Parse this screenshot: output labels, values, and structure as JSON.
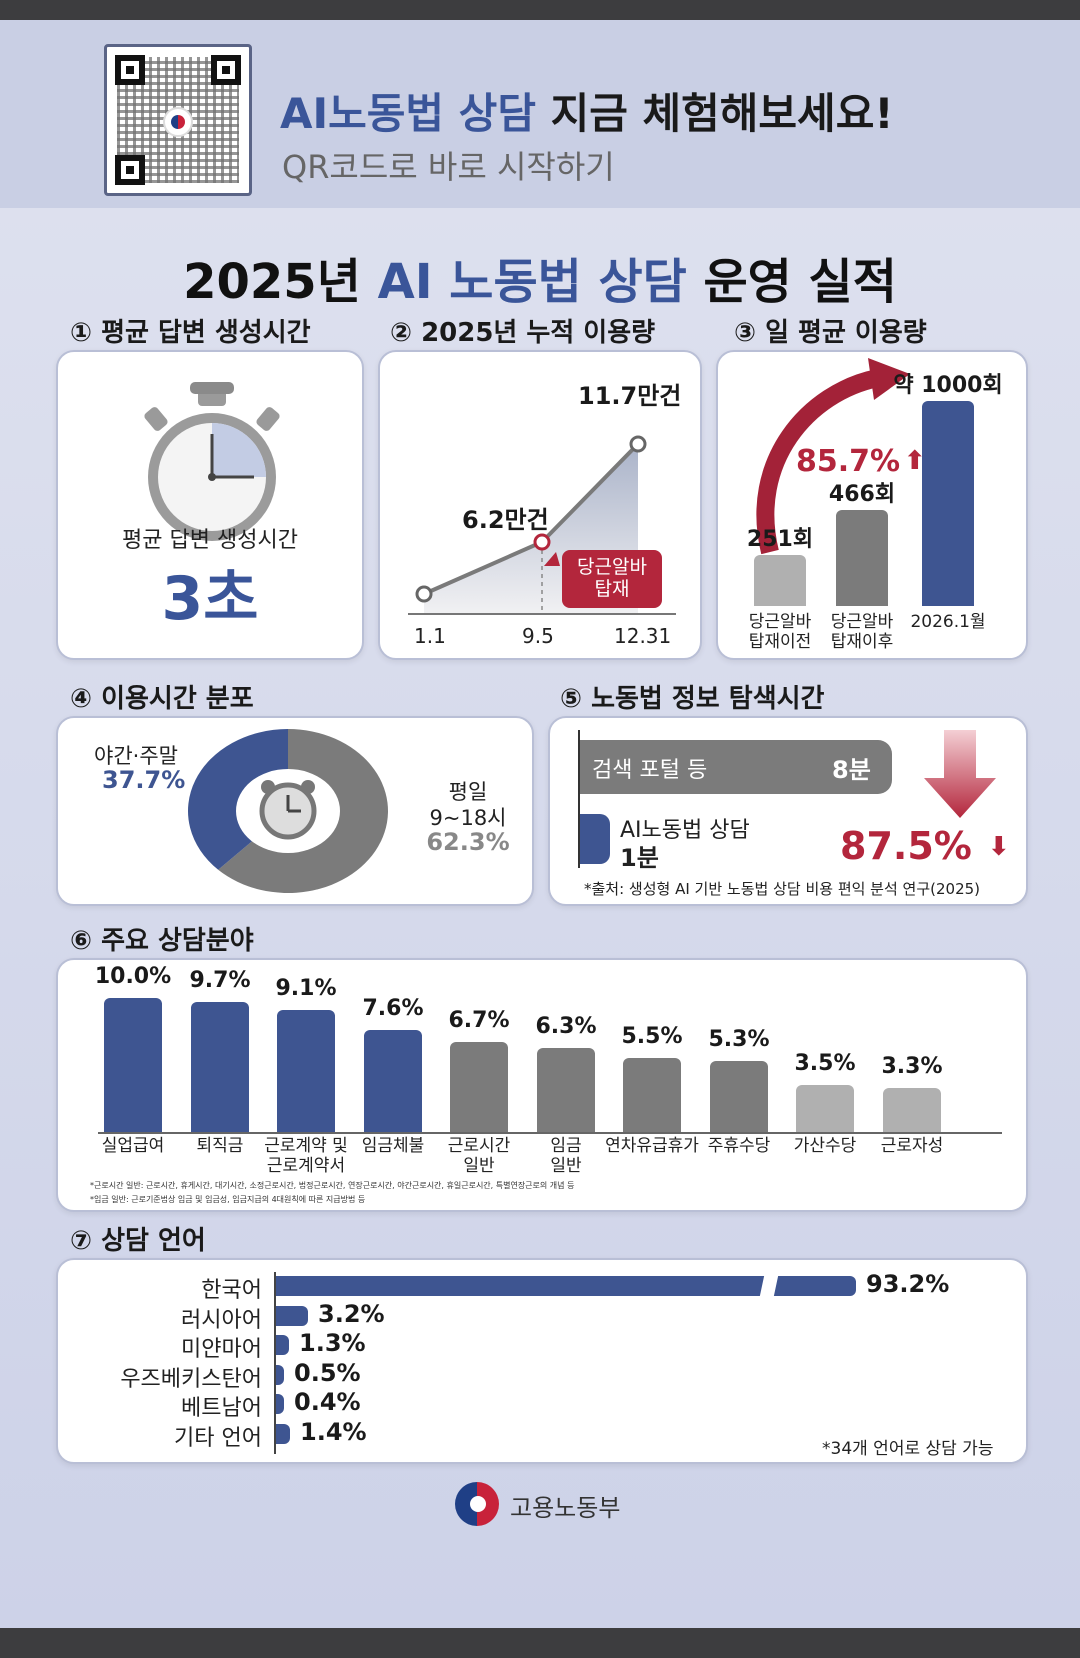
{
  "banner": {
    "title_blue": "AI노동법 상담",
    "title_black": " 지금 체험해보세요!",
    "subtitle": "QR코드로 바로 시작하기"
  },
  "title": {
    "year": "2025년 ",
    "blue": "AI 노동법 상담",
    "rest": " 운영 실적"
  },
  "s1": {
    "heading": "① 평균 답변 생성시간",
    "label": "평균 답변 생성시간",
    "value": "3초"
  },
  "s2": {
    "heading": "② 2025년 누적 이용량",
    "points": [
      {
        "x": "1.1",
        "label": ""
      },
      {
        "x": "9.5",
        "label": "6.2만건"
      },
      {
        "x": "12.31",
        "label": "11.7만건"
      }
    ],
    "callout": "당근알바\n탑재"
  },
  "s3": {
    "heading": "③ 일 평균 이용량",
    "bars": [
      {
        "label": "당근알바\n탑재이전",
        "value": "251회",
        "num": 251
      },
      {
        "label": "당근알바\n탑재이후",
        "value": "466회",
        "num": 466
      },
      {
        "label": "2026.1월",
        "value": "약 1000회",
        "num": 1000
      }
    ],
    "growth": "85.7%"
  },
  "s4": {
    "heading": "④ 이용시간 분포",
    "night_label": "야간·주말",
    "night_pct": "37.7%",
    "night_num": 37.7,
    "day_label": "평일",
    "day_hours": "9~18시",
    "day_pct": "62.3%",
    "day_num": 62.3
  },
  "s5": {
    "heading": "⑤ 노동법 정보 탐색시간",
    "portal_label": "검색 포털 등",
    "portal_value": "8분",
    "ai_label": "AI노동법 상담",
    "ai_value": "1분",
    "reduction": "87.5%",
    "source": "*출처: 생성형 AI 기반 노동법 상담 비용 편익 분석 연구(2025)"
  },
  "s6": {
    "heading": "⑥ 주요 상담분야",
    "items": [
      {
        "label": "실업급여",
        "pct": "10.0%",
        "num": 10.0
      },
      {
        "label": "퇴직금",
        "pct": "9.7%",
        "num": 9.7
      },
      {
        "label": "근로계약 및\n근로계약서",
        "pct": "9.1%",
        "num": 9.1
      },
      {
        "label": "임금체불",
        "pct": "7.6%",
        "num": 7.6
      },
      {
        "label": "근로시간\n일반",
        "pct": "6.7%",
        "num": 6.7
      },
      {
        "label": "임금\n일반",
        "pct": "6.3%",
        "num": 6.3
      },
      {
        "label": "연차유급휴가",
        "pct": "5.5%",
        "num": 5.5
      },
      {
        "label": "주휴수당",
        "pct": "5.3%",
        "num": 5.3
      },
      {
        "label": "가산수당",
        "pct": "3.5%",
        "num": 3.5
      },
      {
        "label": "근로자성",
        "pct": "3.3%",
        "num": 3.3
      }
    ],
    "note1": "*근로시간 일반: 근로시간, 휴게시간, 대기시간, 소정근로시간, 법정근로시간, 연장근로시간, 야간근로시간, 휴일근로시간, 특별연장근로의 개념 등",
    "note2": "*임금 일반: 근로기준법상 임금 및 임금성, 임금지급의 4대원칙에 따른 지급방법 등"
  },
  "s7": {
    "heading": "⑦ 상담 언어",
    "items": [
      {
        "label": "한국어",
        "pct": "93.2%",
        "num": 93.2
      },
      {
        "label": "러시아어",
        "pct": "3.2%",
        "num": 3.2
      },
      {
        "label": "미얀마어",
        "pct": "1.3%",
        "num": 1.3
      },
      {
        "label": "우즈베키스탄어",
        "pct": "0.5%",
        "num": 0.5
      },
      {
        "label": "베트남어",
        "pct": "0.4%",
        "num": 0.4
      },
      {
        "label": "기타 언어",
        "pct": "1.4%",
        "num": 1.4
      }
    ],
    "note": "*34개 언어로 상담 가능"
  },
  "footer": {
    "ministry": "고용노동부"
  },
  "colors": {
    "blue": "#3e5591",
    "gray": "#7b7b7b",
    "red": "#b3263c"
  }
}
